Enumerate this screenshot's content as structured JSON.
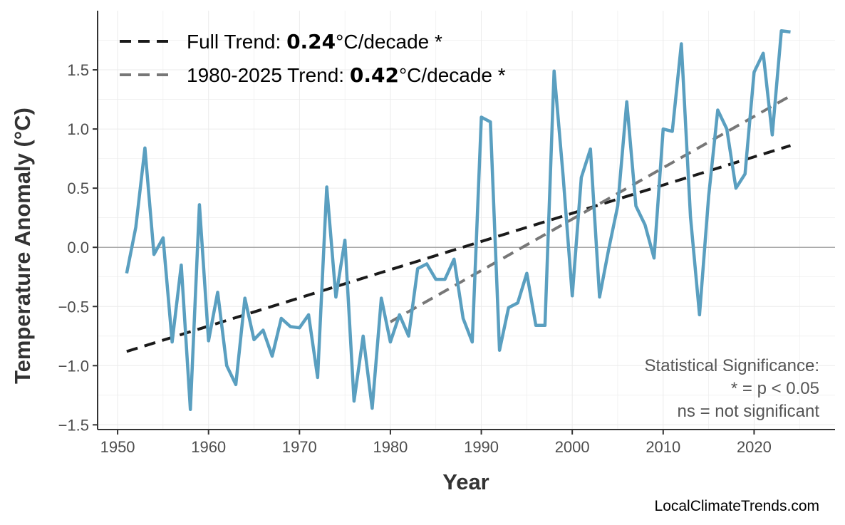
{
  "chart_data": {
    "type": "line",
    "xlabel": "Year",
    "ylabel": "Temperature Anomaly (°C)",
    "xlim": [
      1947.8,
      2028.9
    ],
    "ylim": [
      -1.54,
      2.0
    ],
    "xticks": [
      1950,
      1960,
      1970,
      1980,
      1990,
      2000,
      2010,
      2020
    ],
    "yticks": [
      -1.5,
      -1.0,
      -0.5,
      0.0,
      0.5,
      1.0,
      1.5
    ],
    "ytick_labels": [
      "−1.5",
      "−1.0",
      "−0.5",
      "0.0",
      "0.5",
      "1.0",
      "1.5"
    ],
    "grid": true,
    "zero_line": true,
    "series_color": "#5a9fc0",
    "x": [
      1951,
      1952,
      1953,
      1954,
      1955,
      1956,
      1957,
      1958,
      1959,
      1960,
      1961,
      1962,
      1963,
      1964,
      1965,
      1966,
      1967,
      1968,
      1969,
      1970,
      1971,
      1972,
      1973,
      1974,
      1975,
      1976,
      1977,
      1978,
      1979,
      1980,
      1981,
      1982,
      1983,
      1984,
      1985,
      1986,
      1987,
      1988,
      1989,
      1990,
      1991,
      1992,
      1993,
      1994,
      1995,
      1996,
      1997,
      1998,
      1999,
      2000,
      2001,
      2002,
      2003,
      2004,
      2005,
      2006,
      2007,
      2008,
      2009,
      2010,
      2011,
      2012,
      2013,
      2014,
      2015,
      2016,
      2017,
      2018,
      2019,
      2020,
      2021,
      2022,
      2023,
      2024
    ],
    "values": [
      -0.22,
      0.17,
      0.84,
      -0.06,
      0.08,
      -0.8,
      -0.15,
      -1.37,
      0.36,
      -0.79,
      -0.38,
      -1.0,
      -1.16,
      -0.43,
      -0.78,
      -0.7,
      -0.92,
      -0.6,
      -0.67,
      -0.68,
      -0.57,
      -1.1,
      0.51,
      -0.42,
      0.06,
      -1.3,
      -0.75,
      -1.36,
      -0.43,
      -0.8,
      -0.57,
      -0.75,
      -0.18,
      -0.14,
      -0.27,
      -0.27,
      -0.1,
      -0.6,
      -0.8,
      1.1,
      1.06,
      -0.87,
      -0.51,
      -0.47,
      -0.22,
      -0.66,
      -0.66,
      1.49,
      0.6,
      -0.41,
      0.59,
      0.83,
      -0.42,
      -0.02,
      0.35,
      1.23,
      0.35,
      0.19,
      -0.09,
      1.0,
      0.98,
      1.72,
      0.26,
      -0.57,
      0.43,
      1.16,
      1.0,
      0.5,
      0.62,
      1.48,
      1.64,
      0.95,
      1.83,
      1.82
    ],
    "trends": [
      {
        "label_prefix": "Full Trend: ",
        "rate": "0.24",
        "label_suffix": "°C/decade *",
        "x": [
          1951,
          2024
        ],
        "y": [
          -0.88,
          0.86
        ],
        "color": "#1a1a1a"
      },
      {
        "label_prefix": "1980-2025 Trend: ",
        "rate": "0.42",
        "label_suffix": "°C/decade *",
        "x": [
          1980,
          2024
        ],
        "y": [
          -0.63,
          1.28
        ],
        "color": "#777777"
      }
    ],
    "legend_position": "top-left",
    "annotation": [
      "Statistical Significance:",
      "* = p < 0.05",
      "ns = not significant"
    ],
    "credit": "LocalClimateTrends.com"
  }
}
